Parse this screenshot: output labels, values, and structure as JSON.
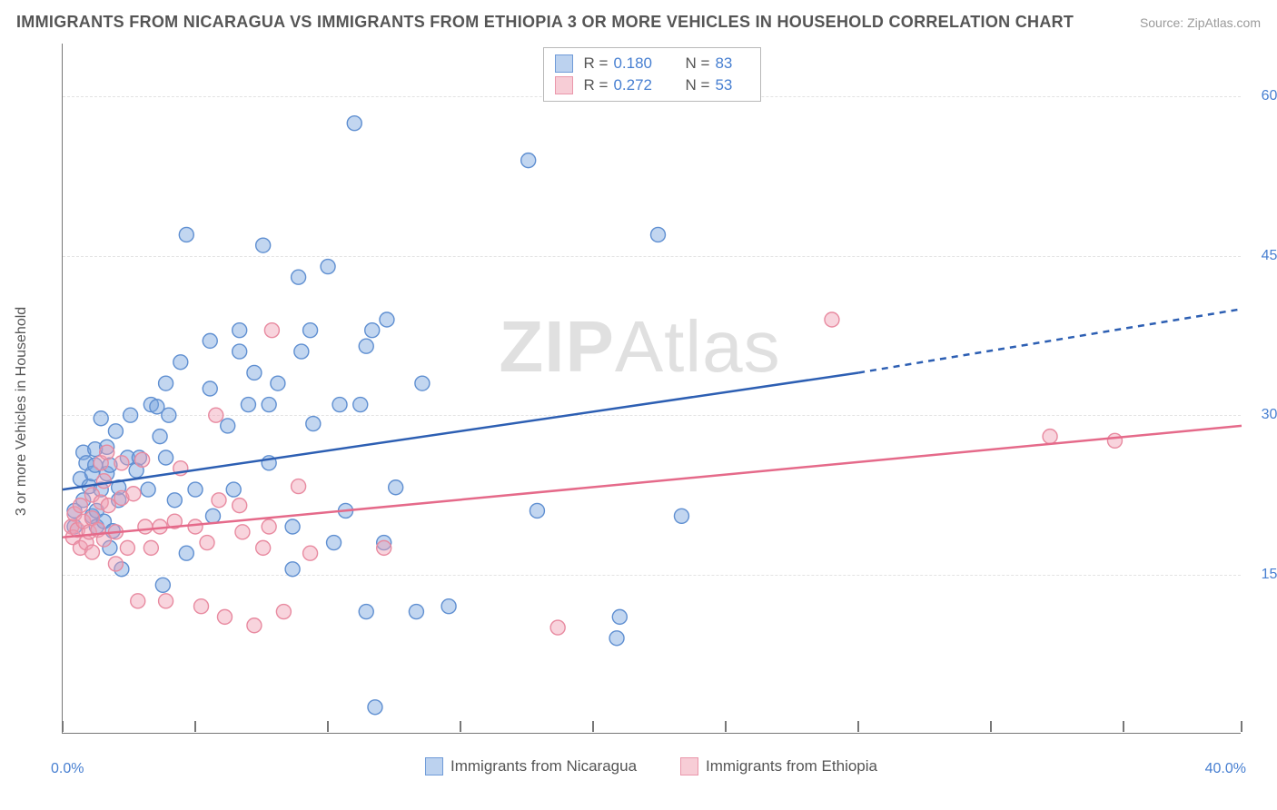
{
  "header": {
    "title": "IMMIGRANTS FROM NICARAGUA VS IMMIGRANTS FROM ETHIOPIA 3 OR MORE VEHICLES IN HOUSEHOLD CORRELATION CHART",
    "source": "Source: ZipAtlas.com"
  },
  "ylabel": "3 or more Vehicles in Household",
  "watermark_zip": "ZIP",
  "watermark_atlas": "Atlas",
  "chart": {
    "type": "scatter",
    "background_color": "#ffffff",
    "grid_color": "#e3e3e3",
    "axis_color": "#777777",
    "label_color": "#555555",
    "tick_label_color": "#477fd1",
    "title_fontsize": 18,
    "label_fontsize": 16,
    "tick_fontsize": 16,
    "xlim": [
      0,
      40
    ],
    "ylim": [
      0,
      65
    ],
    "xtick_positions": [
      0,
      4.5,
      9,
      13.5,
      18,
      22.5,
      27,
      31.5,
      36,
      40
    ],
    "xtick_labels_start": "0.0%",
    "xtick_labels_end": "40.0%",
    "ytick_positions": [
      15,
      30,
      45,
      60
    ],
    "ytick_labels": [
      "15.0%",
      "30.0%",
      "45.0%",
      "60.0%"
    ],
    "marker_radius": 8,
    "marker_opacity": 0.55,
    "line_width": 2.5
  },
  "series": [
    {
      "name": "Immigrants from Nicaragua",
      "color_fill": "rgba(120,165,222,0.45)",
      "color_stroke": "#5f8fd1",
      "swatch_fill": "#bcd2ef",
      "swatch_border": "#6f9bd8",
      "line_color": "#2d5fb3",
      "r_label": "R =",
      "r_value": "0.180",
      "n_label": "N =",
      "n_value": "83",
      "trend": {
        "x1": 0,
        "y1": 23,
        "x2": 27,
        "y2": 34,
        "x2_dash": 40,
        "y2_dash": 40
      },
      "points": [
        [
          0.4,
          19.5
        ],
        [
          0.4,
          21
        ],
        [
          0.6,
          24
        ],
        [
          0.7,
          26.5
        ],
        [
          0.7,
          22
        ],
        [
          0.8,
          25.5
        ],
        [
          0.9,
          23.3
        ],
        [
          1.0,
          20.5
        ],
        [
          1.0,
          24.5
        ],
        [
          1.1,
          25.3
        ],
        [
          1.1,
          26.8
        ],
        [
          1.15,
          19.5
        ],
        [
          1.15,
          21
        ],
        [
          1.3,
          29.7
        ],
        [
          1.3,
          23
        ],
        [
          1.4,
          20
        ],
        [
          1.5,
          24.5
        ],
        [
          1.5,
          27
        ],
        [
          1.6,
          25.3
        ],
        [
          1.6,
          17.5
        ],
        [
          1.7,
          19.1
        ],
        [
          1.8,
          28.5
        ],
        [
          1.9,
          23.2
        ],
        [
          1.9,
          22
        ],
        [
          2.0,
          15.5
        ],
        [
          2.2,
          26
        ],
        [
          2.3,
          30
        ],
        [
          2.5,
          24.8
        ],
        [
          2.6,
          26
        ],
        [
          2.9,
          23
        ],
        [
          3.0,
          31
        ],
        [
          3.2,
          30.8
        ],
        [
          3.3,
          28
        ],
        [
          3.4,
          14
        ],
        [
          3.5,
          26
        ],
        [
          3.5,
          33
        ],
        [
          3.6,
          30
        ],
        [
          3.8,
          22
        ],
        [
          4.0,
          35
        ],
        [
          4.2,
          17
        ],
        [
          4.2,
          47
        ],
        [
          4.5,
          23
        ],
        [
          5.0,
          32.5
        ],
        [
          5.0,
          37
        ],
        [
          5.1,
          20.5
        ],
        [
          5.6,
          29
        ],
        [
          5.8,
          23
        ],
        [
          6.0,
          36
        ],
        [
          6.0,
          38
        ],
        [
          6.3,
          31
        ],
        [
          6.5,
          34
        ],
        [
          6.8,
          46
        ],
        [
          7.0,
          25.5
        ],
        [
          7.0,
          31
        ],
        [
          7.3,
          33
        ],
        [
          7.8,
          15.5
        ],
        [
          7.8,
          19.5
        ],
        [
          8.0,
          43
        ],
        [
          8.1,
          36
        ],
        [
          8.4,
          38
        ],
        [
          8.5,
          29.2
        ],
        [
          9.0,
          44
        ],
        [
          9.2,
          18
        ],
        [
          9.4,
          31
        ],
        [
          9.6,
          21
        ],
        [
          9.9,
          57.5
        ],
        [
          10.1,
          31
        ],
        [
          10.3,
          11.5
        ],
        [
          10.3,
          36.5
        ],
        [
          10.5,
          38
        ],
        [
          10.6,
          2.5
        ],
        [
          10.9,
          18
        ],
        [
          11.0,
          39
        ],
        [
          11.3,
          23.2
        ],
        [
          12.0,
          11.5
        ],
        [
          12.2,
          33
        ],
        [
          13.1,
          12
        ],
        [
          15.8,
          54
        ],
        [
          16.1,
          21
        ],
        [
          18.8,
          9
        ],
        [
          18.9,
          11
        ],
        [
          20.2,
          47
        ],
        [
          21,
          20.5
        ]
      ]
    },
    {
      "name": "Immigrants from Ethiopia",
      "color_fill": "rgba(240,160,180,0.45)",
      "color_stroke": "#e88aa0",
      "swatch_fill": "#f7cdd6",
      "swatch_border": "#ea97ab",
      "line_color": "#e56a8a",
      "r_label": "R =",
      "r_value": "0.272",
      "n_label": "N =",
      "n_value": "53",
      "trend": {
        "x1": 0,
        "y1": 18.5,
        "x2": 40,
        "y2": 29
      },
      "points": [
        [
          0.3,
          19.5
        ],
        [
          0.35,
          18.5
        ],
        [
          0.4,
          20.7
        ],
        [
          0.5,
          19.2
        ],
        [
          0.6,
          21.5
        ],
        [
          0.6,
          17.5
        ],
        [
          0.7,
          20
        ],
        [
          0.8,
          18
        ],
        [
          0.9,
          19
        ],
        [
          1.0,
          20.3
        ],
        [
          1.0,
          22.5
        ],
        [
          1.0,
          17.1
        ],
        [
          1.2,
          19.2
        ],
        [
          1.3,
          25.5
        ],
        [
          1.3,
          21.8
        ],
        [
          1.4,
          18.3
        ],
        [
          1.4,
          23.8
        ],
        [
          1.5,
          26.5
        ],
        [
          1.55,
          21.5
        ],
        [
          1.8,
          16
        ],
        [
          1.8,
          19
        ],
        [
          2.0,
          22.2
        ],
        [
          2.0,
          25.5
        ],
        [
          2.2,
          17.5
        ],
        [
          2.4,
          22.6
        ],
        [
          2.55,
          12.5
        ],
        [
          2.7,
          25.8
        ],
        [
          2.8,
          19.5
        ],
        [
          3.0,
          17.5
        ],
        [
          3.3,
          19.5
        ],
        [
          3.5,
          12.5
        ],
        [
          3.8,
          20
        ],
        [
          4.0,
          25
        ],
        [
          4.5,
          19.5
        ],
        [
          4.7,
          12
        ],
        [
          4.9,
          18
        ],
        [
          5.2,
          30
        ],
        [
          5.3,
          22
        ],
        [
          5.5,
          11
        ],
        [
          6.0,
          21.5
        ],
        [
          6.1,
          19
        ],
        [
          6.5,
          10.2
        ],
        [
          6.8,
          17.5
        ],
        [
          7.0,
          19.5
        ],
        [
          7.1,
          38
        ],
        [
          7.5,
          11.5
        ],
        [
          8.0,
          23.3
        ],
        [
          8.4,
          17
        ],
        [
          10.9,
          17.5
        ],
        [
          16.8,
          10
        ],
        [
          26.1,
          39
        ],
        [
          33.5,
          28
        ],
        [
          35.7,
          27.6
        ]
      ]
    }
  ]
}
